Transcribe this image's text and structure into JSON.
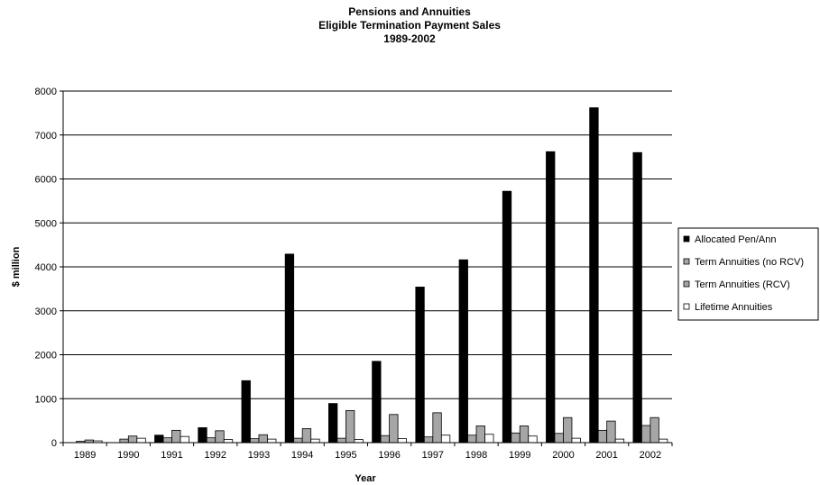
{
  "chart_data": {
    "type": "bar",
    "title": [
      "Pensions and Annuities",
      "Eligible Termination Payment Sales",
      "1989-2002"
    ],
    "xlabel": "Year",
    "ylabel": "$ million",
    "ylim": [
      0,
      8000
    ],
    "yticks": [
      0,
      1000,
      2000,
      3000,
      4000,
      5000,
      6000,
      7000,
      8000
    ],
    "grid": "horizontal",
    "legend_position": "right",
    "categories": [
      "1989",
      "1990",
      "1991",
      "1992",
      "1993",
      "1994",
      "1995",
      "1996",
      "1997",
      "1998",
      "1999",
      "2000",
      "2001",
      "2002"
    ],
    "series": [
      {
        "name": "Allocated Pen/Ann",
        "color": "#000000",
        "values": [
          0,
          0,
          170,
          340,
          1410,
          4290,
          890,
          1850,
          3540,
          4160,
          5720,
          6620,
          7620,
          6600
        ]
      },
      {
        "name": "Term Annuities (no RCV)",
        "color": "#a6a6a6",
        "values": [
          30,
          80,
          110,
          110,
          90,
          100,
          100,
          160,
          130,
          170,
          220,
          210,
          280,
          390
        ]
      },
      {
        "name": "Term Annuities (RCV)",
        "color": "#a6a6a6",
        "values": [
          60,
          150,
          280,
          270,
          180,
          320,
          730,
          640,
          680,
          380,
          380,
          570,
          490,
          570
        ]
      },
      {
        "name": "Lifetime Annuities",
        "color": "#ffffff",
        "values": [
          40,
          100,
          140,
          70,
          80,
          80,
          70,
          90,
          170,
          190,
          150,
          100,
          80,
          80
        ]
      }
    ]
  }
}
